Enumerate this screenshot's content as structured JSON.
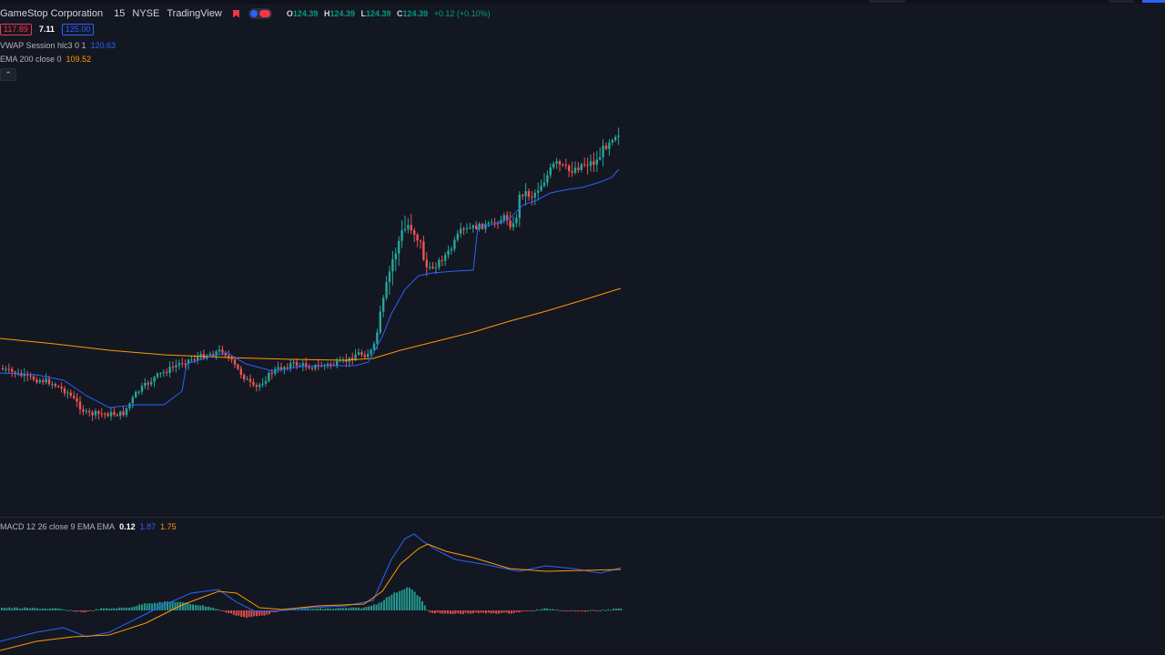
{
  "header": {
    "symbol": "GameStop Corporation",
    "interval": "15",
    "exchange": "NYSE",
    "source": "TradingView",
    "ohlc": {
      "open_key": "O",
      "open": "124.39",
      "high_key": "H",
      "high": "124.39",
      "low_key": "L",
      "low": "124.39",
      "close_key": "C",
      "close": "124.39",
      "change": "+0.12 (+0.10%)"
    }
  },
  "price_boxes": {
    "bid": "117.89",
    "spread": "7.11",
    "ask": "125.00"
  },
  "indicators": {
    "vwap": {
      "label": "VWAP Session hlc3 0 1",
      "value": "120.63",
      "color": "#2962ff"
    },
    "ema": {
      "label": "EMA 200 close 0",
      "value": "109.52",
      "color": "#ff9800"
    },
    "macd": {
      "label": "MACD 12 26 close 9 EMA EMA",
      "hist": "0.12",
      "macd": "1.87",
      "signal": "1.75"
    }
  },
  "colors": {
    "up": "#26a69a",
    "down": "#ef5350",
    "background": "#131722",
    "vwap": "#2962ff",
    "ema": "#ff9800"
  },
  "icons": {
    "flag": "flag-icon",
    "collapse": "chevron-up-icon"
  }
}
